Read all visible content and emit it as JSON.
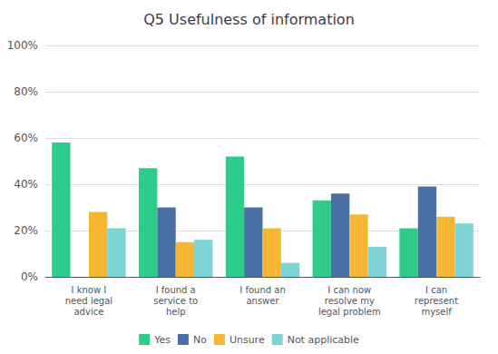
{
  "chart_data": {
    "type": "bar",
    "title": "Q5 Usefulness of information",
    "categories": [
      "I know I\nneed legal\nadvice",
      "I found a\nservice to\nhelp",
      "I found an\nanswer",
      "I can now\nresolve my\nlegal problem",
      "I can\nrepresent\nmyself"
    ],
    "series": [
      {
        "name": "Yes",
        "color": "#2ecc8b",
        "values": [
          58,
          47,
          52,
          33,
          21
        ]
      },
      {
        "name": "No",
        "color": "#4a6fa5",
        "values": [
          0,
          30,
          30,
          36,
          39
        ]
      },
      {
        "name": "Unsure",
        "color": "#f5b731",
        "values": [
          28,
          15,
          21,
          27,
          26
        ]
      },
      {
        "name": "Not applicable",
        "color": "#7dd4d4",
        "values": [
          21,
          16,
          6,
          13,
          23
        ]
      }
    ],
    "ylim": [
      0,
      100
    ],
    "yticks": [
      {
        "value": 0,
        "label": "0%"
      },
      {
        "value": 20,
        "label": "20%"
      },
      {
        "value": 40,
        "label": "40%"
      },
      {
        "value": 60,
        "label": "60%"
      },
      {
        "value": 80,
        "label": "80%"
      },
      {
        "value": 100,
        "label": "100%"
      }
    ],
    "grid": true,
    "legend": "bottom"
  }
}
